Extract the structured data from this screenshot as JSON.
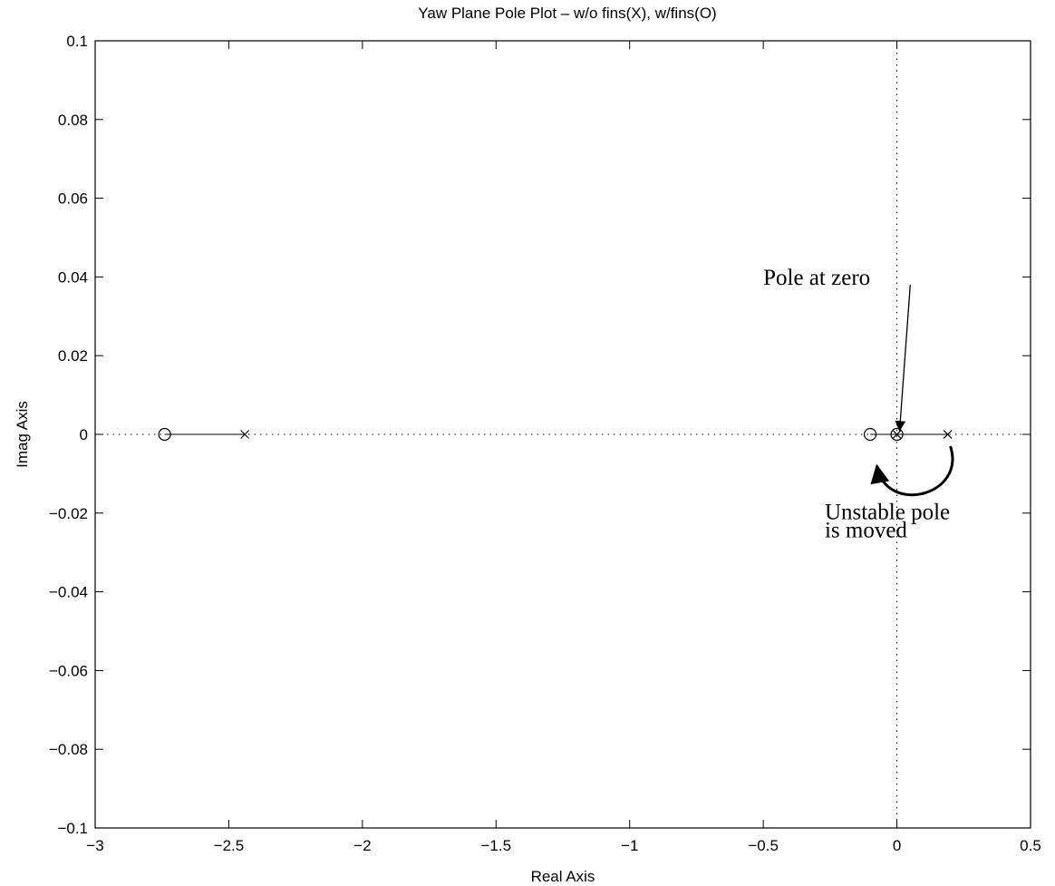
{
  "chart_data": {
    "type": "scatter",
    "title": "Yaw Plane Pole Plot – w/o fins(X), w/fins(O)",
    "xlabel": "Real Axis",
    "ylabel": "Imag Axis",
    "xlim": [
      -3,
      0.5
    ],
    "ylim": [
      -0.1,
      0.1
    ],
    "xticks": [
      -3,
      -2.5,
      -2,
      -1.5,
      -1,
      -0.5,
      0,
      0.5
    ],
    "yticks": [
      -0.1,
      -0.08,
      -0.06,
      -0.04,
      -0.02,
      0,
      0.02,
      0.04,
      0.06,
      0.08,
      0.1
    ],
    "xtick_labels": [
      "−3",
      "−2.5",
      "−2",
      "−1.5",
      "−1",
      "−0.5",
      "0",
      "0.5"
    ],
    "ytick_labels": [
      "−0.1",
      "−0.08",
      "−0.06",
      "−0.04",
      "−0.02",
      "0",
      "0.02",
      "0.04",
      "0.06",
      "0.08",
      "0.1"
    ],
    "grid": false,
    "zero_lines": true,
    "series": [
      {
        "marker": "x",
        "points": [
          [
            -2.44,
            0
          ],
          [
            0,
            0
          ],
          [
            0.19,
            0
          ]
        ]
      },
      {
        "marker": "o",
        "points": [
          [
            -2.74,
            0
          ],
          [
            -0.1,
            0
          ],
          [
            0,
            0
          ]
        ]
      }
    ],
    "connector_lines": [
      [
        [
          -2.74,
          0
        ],
        [
          -2.44,
          0
        ]
      ],
      [
        [
          -0.1,
          0
        ],
        [
          0.19,
          0
        ]
      ]
    ],
    "annotations": [
      {
        "text": "Pole at zero",
        "text_pos": [
          -0.5,
          0.038
        ],
        "arrow_from": [
          0.05,
          0.038
        ],
        "arrow_to": [
          0.01,
          0.001
        ]
      },
      {
        "lines": [
          "Unstable pole",
          "is moved"
        ],
        "text_pos": [
          -0.27,
          -0.0215
        ],
        "arrow_from": [
          0.2,
          -0.003
        ],
        "arrow_to": [
          -0.075,
          -0.008
        ]
      }
    ]
  }
}
